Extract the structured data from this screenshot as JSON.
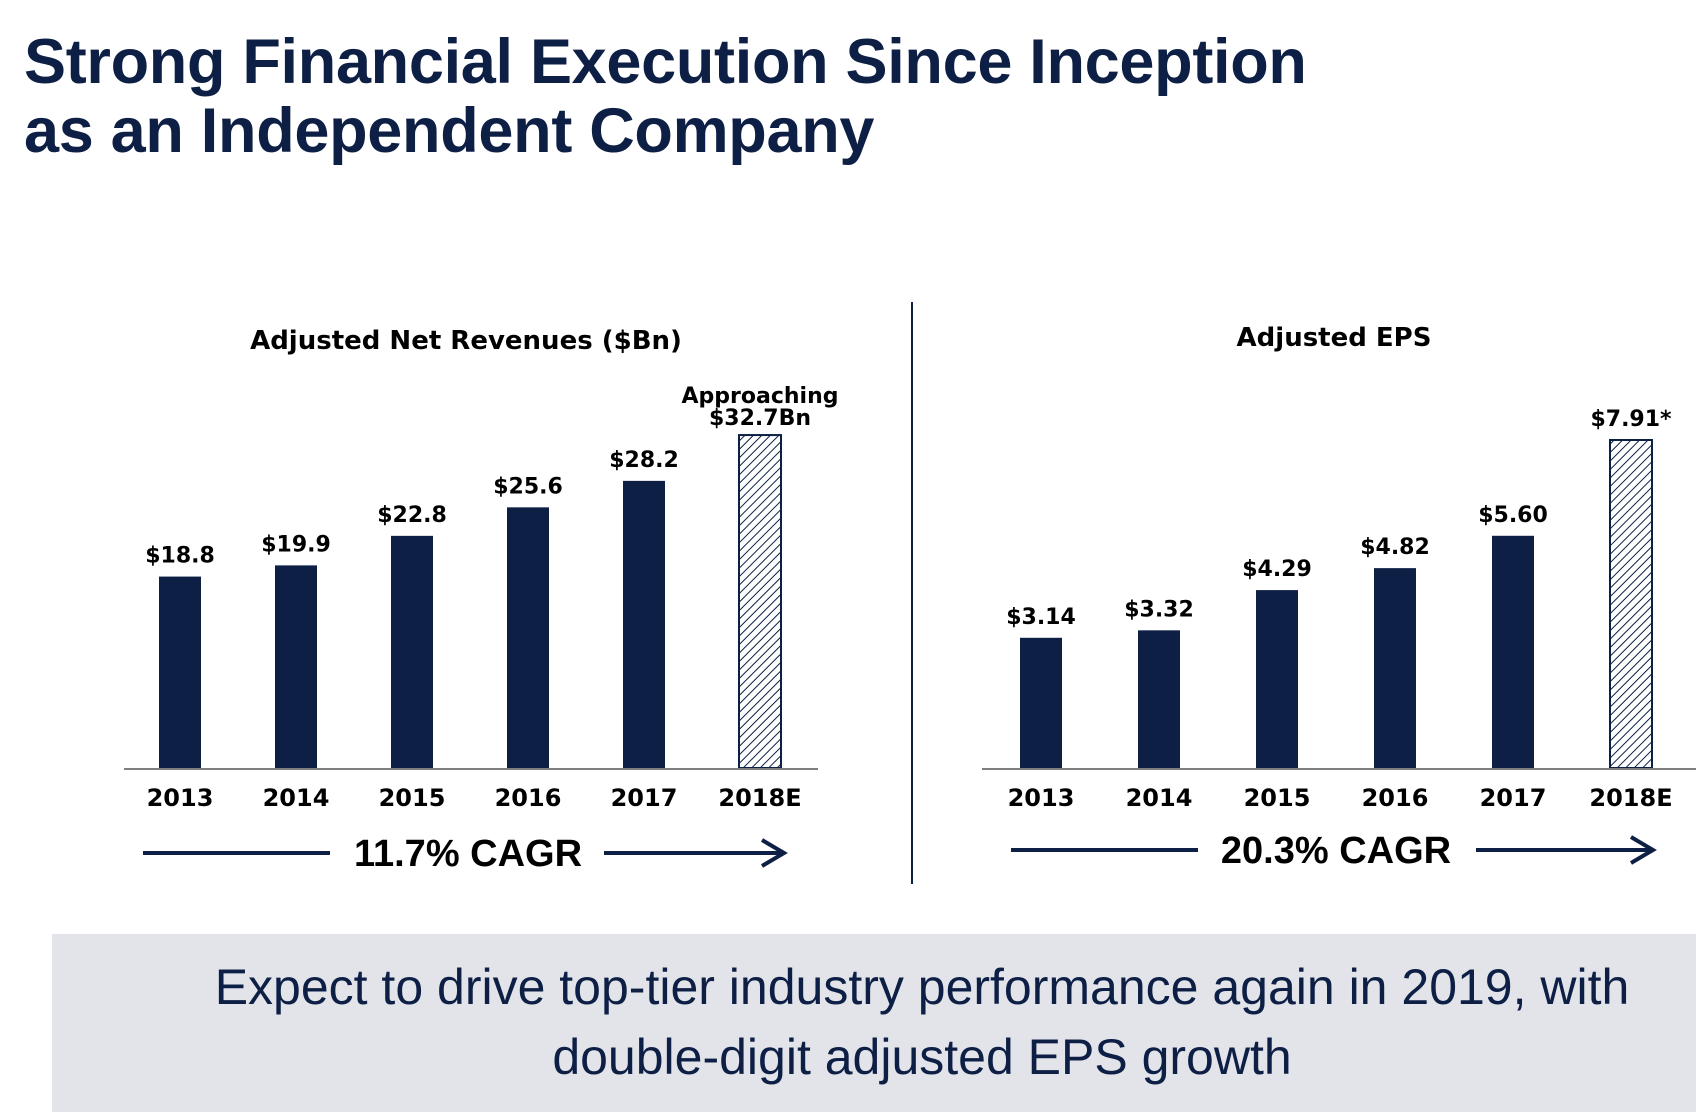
{
  "slide": {
    "title_line1": "Strong Financial Execution Since Inception",
    "title_line2": "as an Independent Company",
    "banner_line1": "Expect to drive top-tier industry performance again in 2019, with",
    "banner_line2": "double-digit adjusted EPS growth"
  },
  "colors": {
    "navy": "#0d1f45",
    "hatch_fill": "#ffffff",
    "banner_bg": "#e3e4ea"
  },
  "chart_data": [
    {
      "type": "bar",
      "title": "Adjusted Net Revenues ($Bn)",
      "categories": [
        "2013",
        "2014",
        "2015",
        "2016",
        "2017",
        "2018E"
      ],
      "values": [
        18.8,
        19.9,
        22.8,
        25.6,
        28.2,
        32.7
      ],
      "labels": [
        "$18.8",
        "$19.9",
        "$22.8",
        "$25.6",
        "$28.2",
        "Approaching $32.7Bn"
      ],
      "estimate_index": 5,
      "ylim": [
        0,
        33
      ],
      "cagr": "11.7% CAGR",
      "grid": false
    },
    {
      "type": "bar",
      "title": "Adjusted EPS",
      "categories": [
        "2013",
        "2014",
        "2015",
        "2016",
        "2017",
        "2018E"
      ],
      "values": [
        3.14,
        3.32,
        4.29,
        4.82,
        5.6,
        7.91
      ],
      "labels": [
        "$3.14",
        "$3.32",
        "$4.29",
        "$4.82",
        "$5.60",
        "$7.91*"
      ],
      "estimate_index": 5,
      "ylim": [
        0,
        7.91
      ],
      "cagr": "20.3% CAGR",
      "grid": false
    }
  ]
}
